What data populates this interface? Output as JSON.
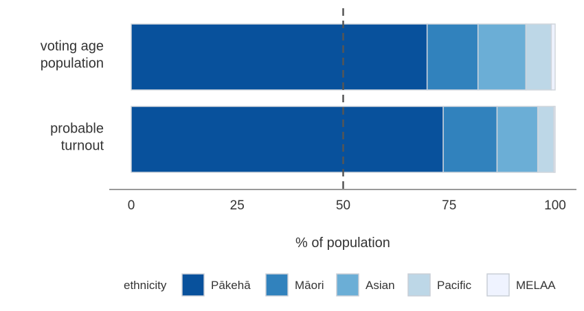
{
  "chart_data": {
    "type": "bar",
    "orientation": "horizontal",
    "stacked": true,
    "categories": [
      "voting age population",
      "probable turnout"
    ],
    "category_display": [
      [
        "voting age",
        "population"
      ],
      [
        "probable",
        "turnout"
      ]
    ],
    "series": [
      {
        "name": "Pākehā",
        "color": "#08519c",
        "values": [
          69.8,
          73.6
        ]
      },
      {
        "name": "Māori",
        "color": "#3182bd",
        "values": [
          12.0,
          12.7
        ]
      },
      {
        "name": "Asian",
        "color": "#6baed6",
        "values": [
          11.3,
          9.6
        ]
      },
      {
        "name": "Pacific",
        "color": "#bdd7e7",
        "values": [
          6.0,
          3.8
        ]
      },
      {
        "name": "MELAA",
        "color": "#eff3ff",
        "values": [
          0.9,
          0.3
        ]
      }
    ],
    "xlabel": "% of population",
    "ylabel": "",
    "xlim": [
      -5,
      105
    ],
    "xticks": [
      0,
      25,
      50,
      75,
      100
    ],
    "reference_line": {
      "x": 50,
      "style": "dashed"
    },
    "legend": {
      "title": "ethnicity",
      "position": "bottom"
    },
    "grid": false
  }
}
